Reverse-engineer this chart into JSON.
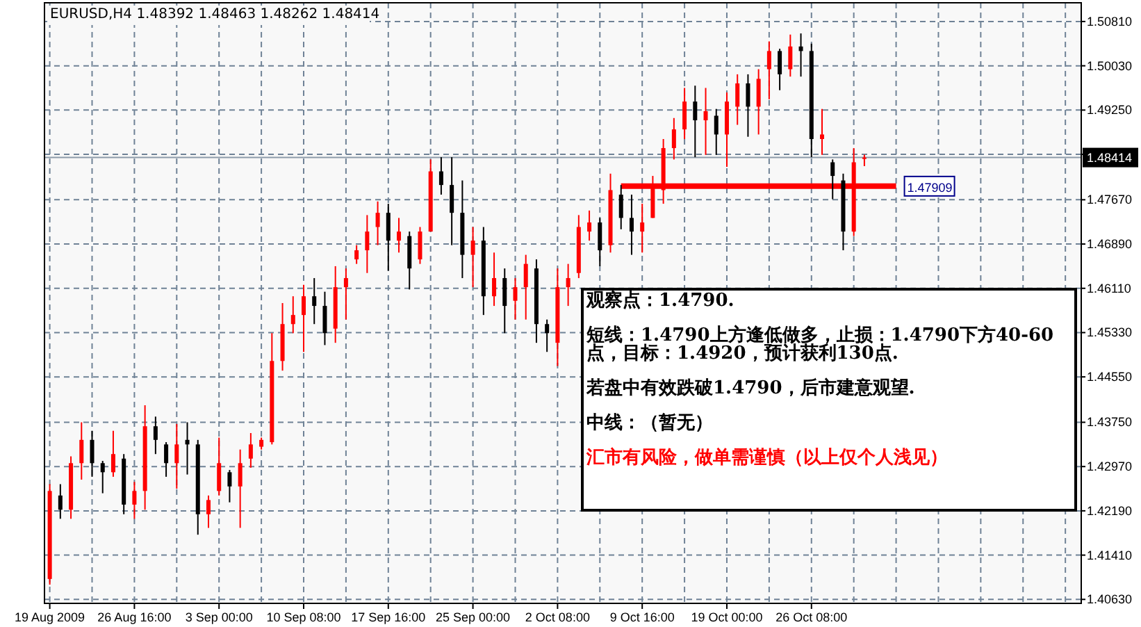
{
  "chart_data": {
    "type": "candlestick",
    "title": "EURUSD,H4  1.48392 1.48463 1.48262 1.48414",
    "categories": [
      "19 Aug 2009",
      null,
      null,
      null,
      null,
      null,
      null,
      null,
      "26 Aug 16:00",
      null,
      null,
      null,
      null,
      null,
      null,
      null,
      "3 Sep 00:00",
      null,
      null,
      null,
      null,
      null,
      null,
      null,
      "10 Sep 08:00",
      null,
      null,
      null,
      null,
      null,
      null,
      null,
      "17 Sep 16:00",
      null,
      null,
      null,
      null,
      null,
      null,
      null,
      "25 Sep 00:00",
      null,
      null,
      null,
      null,
      null,
      null,
      null,
      "2 Oct 08:00",
      null,
      null,
      null,
      null,
      null,
      null,
      null,
      "9 Oct 16:00",
      null,
      null,
      null,
      null,
      null,
      null,
      null,
      "19 Oct 00:00",
      null,
      null,
      null,
      null,
      null,
      null,
      null,
      "26 Oct 08:00",
      null,
      null,
      null,
      null,
      null,
      null,
      null,
      null,
      null,
      null,
      null,
      null,
      null,
      null,
      null,
      null,
      null,
      null,
      null,
      null,
      null,
      null,
      null,
      null,
      null
    ],
    "ohlc": [
      [
        1.4099,
        1.4266,
        1.4089,
        1.4254
      ],
      [
        1.4246,
        1.4266,
        1.4205,
        1.4221
      ],
      [
        1.4221,
        1.4315,
        1.4205,
        1.4303
      ],
      [
        1.4303,
        1.4375,
        1.4274,
        1.4344
      ],
      [
        1.4344,
        1.436,
        1.4279,
        1.4303
      ],
      [
        1.4303,
        1.4307,
        1.425,
        1.4287
      ],
      [
        1.4287,
        1.436,
        1.4279,
        1.4319
      ],
      [
        1.4311,
        1.4319,
        1.4213,
        1.423
      ],
      [
        1.423,
        1.427,
        1.4205,
        1.4254
      ],
      [
        1.4254,
        1.4405,
        1.4221,
        1.4368
      ],
      [
        1.4368,
        1.4385,
        1.4319,
        1.4344
      ],
      [
        1.4336,
        1.434,
        1.4279,
        1.4303
      ],
      [
        1.4303,
        1.4372,
        1.4258,
        1.4336
      ],
      [
        1.4344,
        1.4375,
        1.4283,
        1.4336
      ],
      [
        1.4336,
        1.4344,
        1.4177,
        1.4213
      ],
      [
        1.4213,
        1.4246,
        1.4189,
        1.4238
      ],
      [
        1.4254,
        1.4348,
        1.4246,
        1.4303
      ],
      [
        1.4287,
        1.4291,
        1.4234,
        1.4262
      ],
      [
        1.4262,
        1.4327,
        1.4189,
        1.4303
      ],
      [
        1.4311,
        1.4356,
        1.4295,
        1.4336
      ],
      [
        1.4332,
        1.4348,
        1.4327,
        1.4344
      ],
      [
        1.434,
        1.4532,
        1.4336,
        1.4483
      ],
      [
        1.4483,
        1.4585,
        1.4466,
        1.4548
      ],
      [
        1.4548,
        1.4597,
        1.4532,
        1.4564
      ],
      [
        1.4564,
        1.4617,
        1.4499,
        1.4597
      ],
      [
        1.4597,
        1.4629,
        1.4548,
        1.458
      ],
      [
        1.458,
        1.4605,
        1.4511,
        1.4532
      ],
      [
        1.454,
        1.465,
        1.4515,
        1.4613
      ],
      [
        1.4613,
        1.4646,
        1.4556,
        1.4629
      ],
      [
        1.4662,
        1.4687,
        1.4654,
        1.4678
      ],
      [
        1.4678,
        1.474,
        1.4638,
        1.4711
      ],
      [
        1.4719,
        1.4764,
        1.4687,
        1.4744
      ],
      [
        1.4744,
        1.476,
        1.4642,
        1.4695
      ],
      [
        1.4695,
        1.4735,
        1.4674,
        1.4711
      ],
      [
        1.4703,
        1.4711,
        1.4609,
        1.4646
      ],
      [
        1.4662,
        1.4719,
        1.4654,
        1.4711
      ],
      [
        1.4711,
        1.4838,
        1.4711,
        1.4817
      ],
      [
        1.4817,
        1.4842,
        1.4776,
        1.4793
      ],
      [
        1.4793,
        1.4842,
        1.4687,
        1.4744
      ],
      [
        1.4744,
        1.4801,
        1.4629,
        1.467
      ],
      [
        1.467,
        1.4719,
        1.4613,
        1.4695
      ],
      [
        1.4695,
        1.4719,
        1.4564,
        1.4597
      ],
      [
        1.4597,
        1.4674,
        1.458,
        1.4629
      ],
      [
        1.4629,
        1.4646,
        1.4532,
        1.458
      ],
      [
        1.4589,
        1.4629,
        1.4556,
        1.4613
      ],
      [
        1.4613,
        1.467,
        1.4556,
        1.4654
      ],
      [
        1.4646,
        1.4662,
        1.4515,
        1.4548
      ],
      [
        1.4548,
        1.4556,
        1.4499,
        1.4532
      ],
      [
        1.4515,
        1.4646,
        1.4474,
        1.4613
      ],
      [
        1.4613,
        1.4654,
        1.458,
        1.4629
      ],
      [
        1.4638,
        1.474,
        1.4629,
        1.4719
      ],
      [
        1.4711,
        1.4748,
        1.4695,
        1.4727
      ],
      [
        1.4727,
        1.4735,
        1.465,
        1.4678
      ],
      [
        1.4687,
        1.4813,
        1.4674,
        1.4784
      ],
      [
        1.4776,
        1.4793,
        1.4715,
        1.4735
      ],
      [
        1.4735,
        1.4776,
        1.467,
        1.4711
      ],
      [
        1.4711,
        1.476,
        1.4674,
        1.4727
      ],
      [
        1.4735,
        1.4809,
        1.4735,
        1.4793
      ],
      [
        1.4784,
        1.4874,
        1.476,
        1.4858
      ],
      [
        1.4858,
        1.4911,
        1.4838,
        1.4891
      ],
      [
        1.4891,
        1.4964,
        1.4874,
        1.494
      ],
      [
        1.494,
        1.4968,
        1.4842,
        1.4907
      ],
      [
        1.4907,
        1.4964,
        1.4846,
        1.4923
      ],
      [
        1.4915,
        1.4927,
        1.4846,
        1.4882
      ],
      [
        1.4882,
        1.4956,
        1.4825,
        1.494
      ],
      [
        1.4931,
        1.4988,
        1.4899,
        1.4972
      ],
      [
        1.4972,
        1.4988,
        1.4878,
        1.4931
      ],
      [
        1.4931,
        1.4997,
        1.4882,
        1.498
      ],
      [
        1.4997,
        1.5046,
        1.4944,
        1.5029
      ],
      [
        1.5029,
        1.5033,
        1.496,
        1.4988
      ],
      [
        1.4997,
        1.5058,
        1.4984,
        1.5037
      ],
      [
        1.5037,
        1.506,
        1.4984,
        1.5029
      ],
      [
        1.5029,
        1.5042,
        1.4842,
        1.4874
      ],
      [
        1.4874,
        1.4927,
        1.4846,
        1.4882
      ],
      [
        1.4833,
        1.4838,
        1.4768,
        1.4809
      ],
      [
        1.4801,
        1.4813,
        1.4678,
        1.4711
      ],
      [
        1.4711,
        1.4858,
        1.4703,
        1.4833
      ],
      [
        1.48392,
        1.48463,
        1.48262,
        1.48414
      ],
      null,
      null,
      null,
      null,
      null,
      null,
      null,
      null,
      null,
      null,
      null,
      null,
      null,
      null,
      null,
      null,
      null,
      null,
      null,
      null
    ],
    "colors": [
      "#ff0000",
      "#000000",
      "#ff0000",
      "#ff0000",
      "#000000",
      "#000000",
      "#ff0000",
      "#000000",
      "#ff0000",
      "#ff0000",
      "#000000",
      "#000000",
      "#ff0000",
      "#000000",
      "#000000",
      "#ff0000",
      "#ff0000",
      "#000000",
      "#ff0000",
      "#ff0000",
      "#ff0000",
      "#ff0000",
      "#ff0000",
      "#ff0000",
      "#ff0000",
      "#000000",
      "#000000",
      "#ff0000",
      "#ff0000",
      "#ff0000",
      "#ff0000",
      "#ff0000",
      "#000000",
      "#ff0000",
      "#000000",
      "#ff0000",
      "#ff0000",
      "#000000",
      "#000000",
      "#000000",
      "#ff0000",
      "#000000",
      "#ff0000",
      "#000000",
      "#ff0000",
      "#ff0000",
      "#000000",
      "#000000",
      "#ff0000",
      "#ff0000",
      "#ff0000",
      "#ff0000",
      "#000000",
      "#ff0000",
      "#000000",
      "#000000",
      "#ff0000",
      "#ff0000",
      "#ff0000",
      "#ff0000",
      "#ff0000",
      "#000000",
      "#ff0000",
      "#000000",
      "#ff0000",
      "#ff0000",
      "#000000",
      "#ff0000",
      "#ff0000",
      "#000000",
      "#ff0000",
      "#000000",
      "#000000",
      "#ff0000",
      "#000000",
      "#000000",
      "#ff0000",
      "#ff0000",
      null,
      null,
      null,
      null,
      null,
      null,
      null,
      null,
      null,
      null,
      null,
      null,
      null,
      null,
      null,
      null,
      null,
      null,
      null,
      null
    ],
    "series": [
      {
        "type": "line",
        "color": "#ff0000",
        "values": [
          null,
          null,
          null,
          null,
          null,
          null,
          null,
          null,
          null,
          null,
          null,
          null,
          null,
          null,
          null,
          null,
          null,
          null,
          null,
          null,
          null,
          null,
          null,
          null,
          null,
          null,
          null,
          null,
          null,
          null,
          null,
          null,
          null,
          null,
          null,
          null,
          null,
          null,
          null,
          null,
          null,
          null,
          null,
          null,
          null,
          null,
          null,
          null,
          null,
          null,
          null,
          null,
          null,
          null,
          1.47909,
          1.47909,
          1.47909,
          1.47909,
          1.47909,
          1.47909,
          1.47909,
          1.47909,
          1.47909,
          1.47909,
          1.47909,
          1.47909,
          1.47909,
          1.47909,
          1.47909,
          1.47909,
          1.47909,
          1.47909,
          1.47909,
          1.47909,
          1.47909,
          1.47909,
          1.47909,
          1.47909,
          1.47909,
          1.47909,
          1.47909,
          null,
          null,
          null,
          null,
          null,
          null,
          null,
          null,
          null,
          null,
          null,
          null,
          null,
          null,
          null,
          null,
          null
        ],
        "value_labels": [
          null,
          null,
          null,
          null,
          null,
          null,
          null,
          null,
          null,
          null,
          null,
          null,
          null,
          null,
          null,
          null,
          null,
          null,
          null,
          null,
          null,
          null,
          null,
          null,
          null,
          null,
          null,
          null,
          null,
          null,
          null,
          null,
          null,
          null,
          null,
          null,
          null,
          null,
          null,
          null,
          null,
          null,
          null,
          null,
          null,
          null,
          null,
          null,
          null,
          null,
          null,
          null,
          null,
          null,
          null,
          null,
          null,
          null,
          null,
          null,
          null,
          null,
          null,
          null,
          null,
          null,
          null,
          null,
          null,
          null,
          null,
          null,
          null,
          null,
          null,
          null,
          null,
          null,
          null,
          null,
          "1.47909",
          null,
          null,
          null,
          null,
          null,
          null,
          null,
          null,
          null,
          null,
          null,
          null,
          null,
          null,
          null,
          null,
          null
        ]
      }
    ],
    "ref_lines": [
      {
        "axis": "y",
        "value": 1.48414,
        "label": "1.48414",
        "color": "#8c9aa8"
      }
    ],
    "ylim": [
      1.4056,
      1.5114
    ],
    "yticks": [
      {
        "value": 1.5081,
        "label": "1.50810"
      },
      {
        "value": 1.5003,
        "label": "1.50030"
      },
      {
        "value": 1.4925,
        "label": "1.49250"
      },
      {
        "value": 1.4847,
        "label": null
      },
      {
        "value": 1.4767,
        "label": "1.47670"
      },
      {
        "value": 1.4689,
        "label": "1.46890"
      },
      {
        "value": 1.4611,
        "label": "1.46110"
      },
      {
        "value": 1.4533,
        "label": "1.45330"
      },
      {
        "value": 1.4455,
        "label": "1.44550"
      },
      {
        "value": 1.4375,
        "label": "1.43750"
      },
      {
        "value": 1.4297,
        "label": "1.42970"
      },
      {
        "value": 1.4219,
        "label": "1.42190"
      },
      {
        "value": 1.4141,
        "label": "1.41410"
      },
      {
        "value": 1.4063,
        "label": "1.40630"
      }
    ],
    "grid": true,
    "annotations": [
      "观察点：1.4790.",
      "短线：1.4790上方逢低做多，止损：1.4790下方40-60点，目标：1.4920，预计获利130点.",
      "若盘中有效跌破1.4790，后市建意观望.",
      "中线：（暂无）",
      "汇市有风险，做单需谨慎（以上仅个人浅见）"
    ]
  }
}
